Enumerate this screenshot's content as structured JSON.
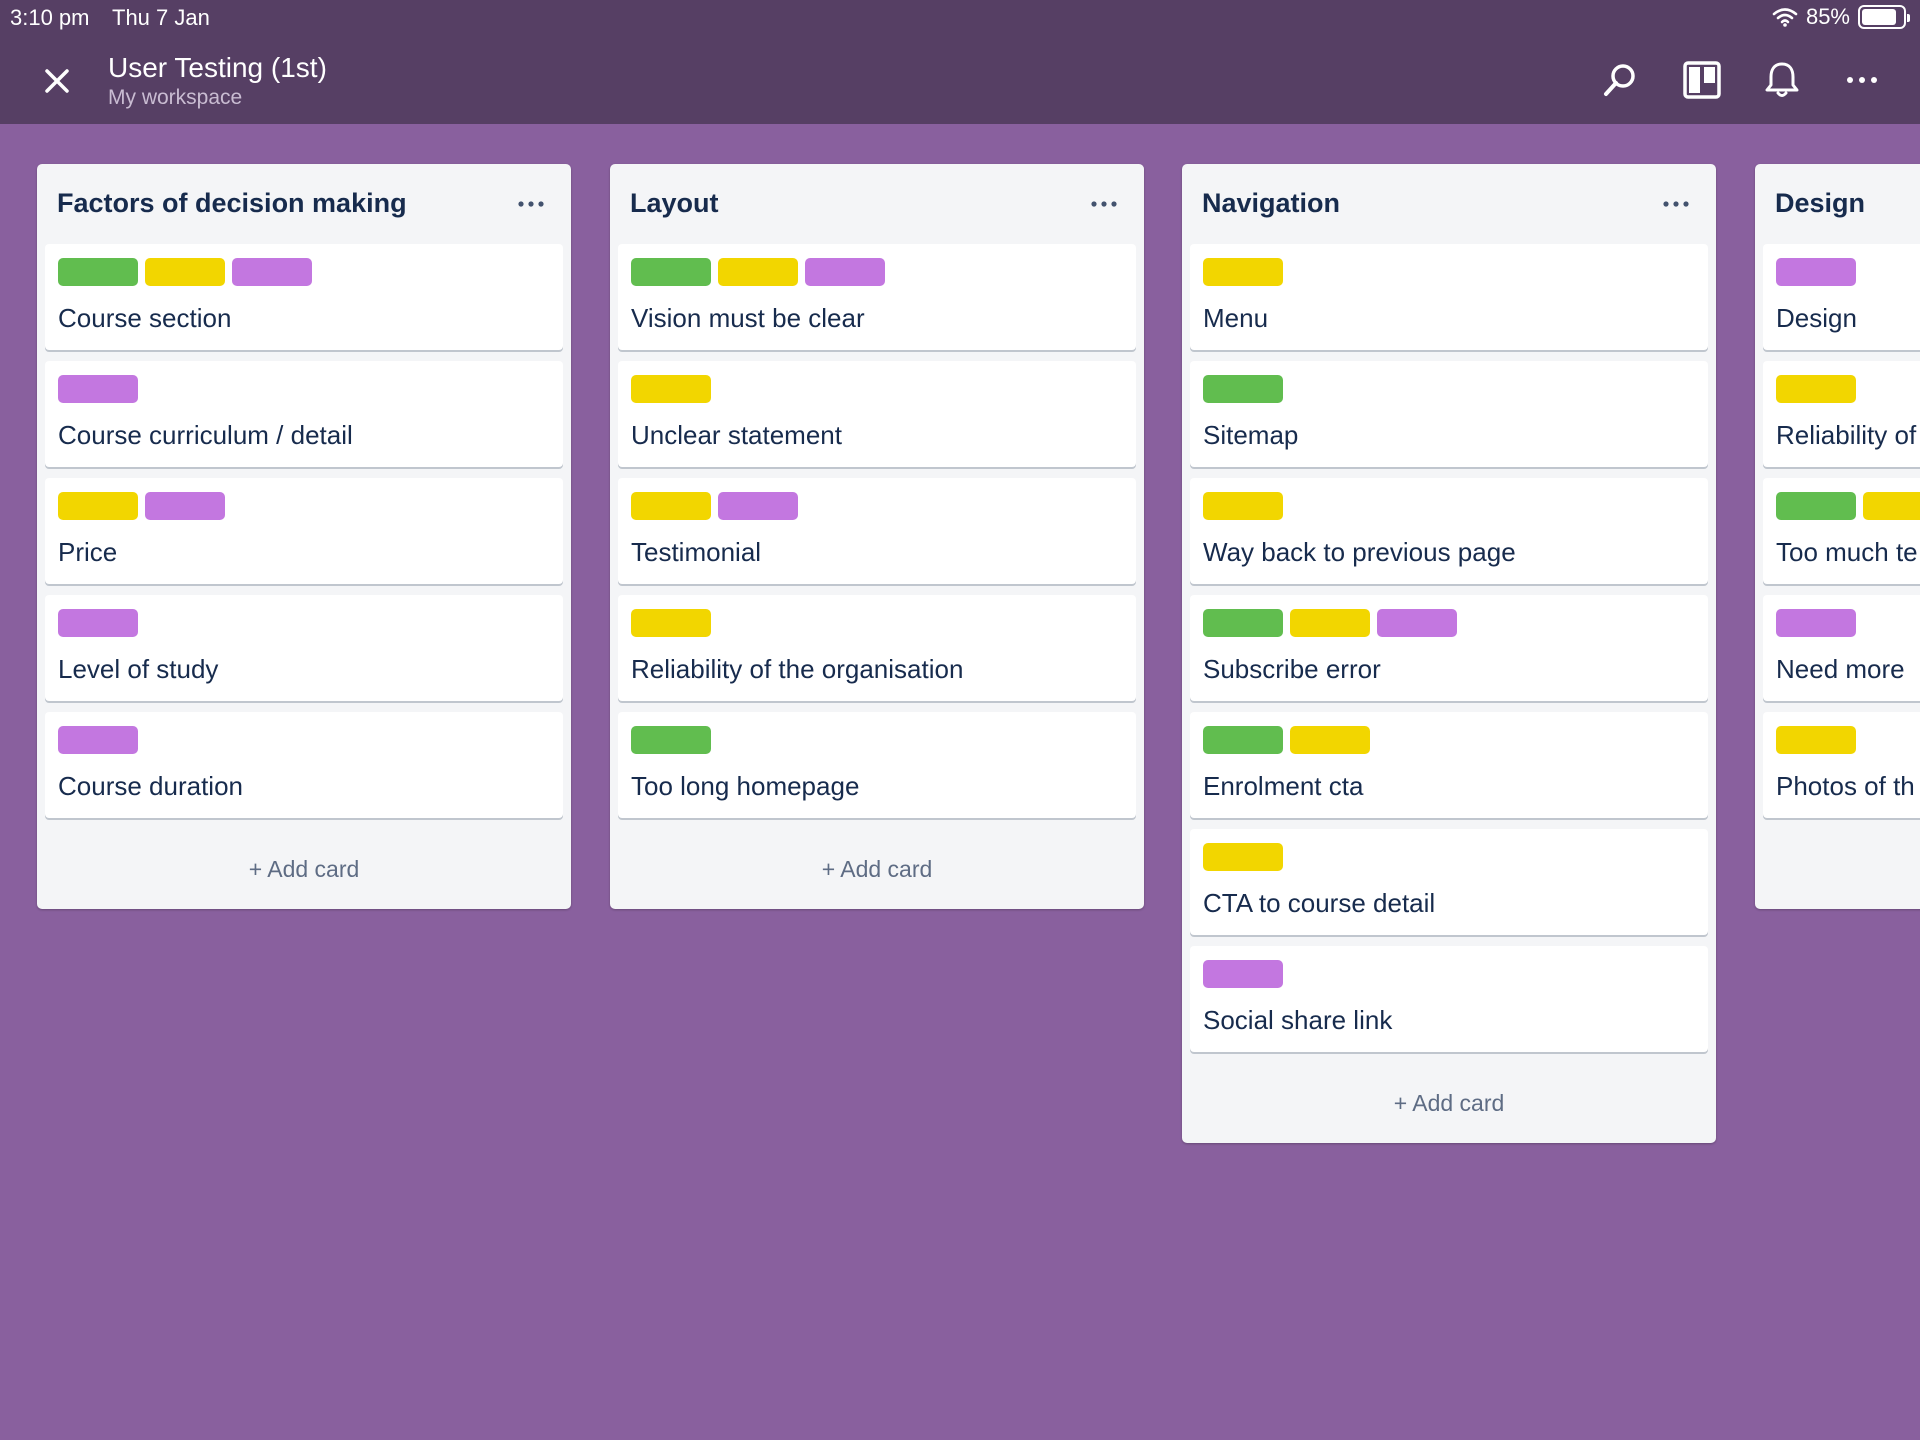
{
  "status_bar": {
    "time": "3:10 pm",
    "date": "Thu 7 Jan",
    "battery": "85%",
    "battery_level": 0.85
  },
  "header": {
    "title": "User Testing (1st)",
    "workspace": "My workspace",
    "icons": [
      "close-icon",
      "search-icon",
      "board-view-icon",
      "bell-icon",
      "more-icon"
    ]
  },
  "colors": {
    "background": "#89609E",
    "header": "#563F64",
    "label_green": "#61BD4F",
    "label_yellow": "#F2D600",
    "label_purple": "#C377E0"
  },
  "lists": [
    {
      "title": "Factors of decision making",
      "add_card": "+ Add card",
      "cards": [
        {
          "title": "Course section",
          "labels": [
            "green",
            "yellow",
            "purple"
          ]
        },
        {
          "title": "Course curriculum / detail",
          "labels": [
            "purple"
          ]
        },
        {
          "title": "Price",
          "labels": [
            "yellow",
            "purple"
          ]
        },
        {
          "title": "Level of study",
          "labels": [
            "purple"
          ]
        },
        {
          "title": "Course duration",
          "labels": [
            "purple"
          ]
        }
      ]
    },
    {
      "title": "Layout",
      "add_card": "+ Add card",
      "cards": [
        {
          "title": "Vision must be clear",
          "labels": [
            "green",
            "yellow",
            "purple"
          ]
        },
        {
          "title": "Unclear statement",
          "labels": [
            "yellow"
          ]
        },
        {
          "title": "Testimonial",
          "labels": [
            "yellow",
            "purple"
          ]
        },
        {
          "title": "Reliability of the organisation",
          "labels": [
            "yellow"
          ]
        },
        {
          "title": "Too long homepage",
          "labels": [
            "green"
          ]
        }
      ]
    },
    {
      "title": "Navigation",
      "add_card": "+ Add card",
      "cards": [
        {
          "title": "Menu",
          "labels": [
            "yellow"
          ]
        },
        {
          "title": "Sitemap",
          "labels": [
            "green"
          ]
        },
        {
          "title": "Way back to previous page",
          "labels": [
            "yellow"
          ]
        },
        {
          "title": "Subscribe error",
          "labels": [
            "green",
            "yellow",
            "purple"
          ]
        },
        {
          "title": "Enrolment cta",
          "labels": [
            "green",
            "yellow"
          ]
        },
        {
          "title": "CTA to course detail",
          "labels": [
            "yellow"
          ]
        },
        {
          "title": "Social share link",
          "labels": [
            "purple"
          ]
        }
      ]
    },
    {
      "title": "Design",
      "add_card": "",
      "cards": [
        {
          "title": "Design",
          "labels": [
            "purple"
          ]
        },
        {
          "title": "Reliability of",
          "labels": [
            "yellow"
          ]
        },
        {
          "title": "Too much te",
          "labels": [
            "green",
            "yellow"
          ]
        },
        {
          "title": "Need more",
          "labels": [
            "purple"
          ]
        },
        {
          "title": "Photos of th",
          "labels": [
            "yellow"
          ]
        }
      ]
    }
  ]
}
